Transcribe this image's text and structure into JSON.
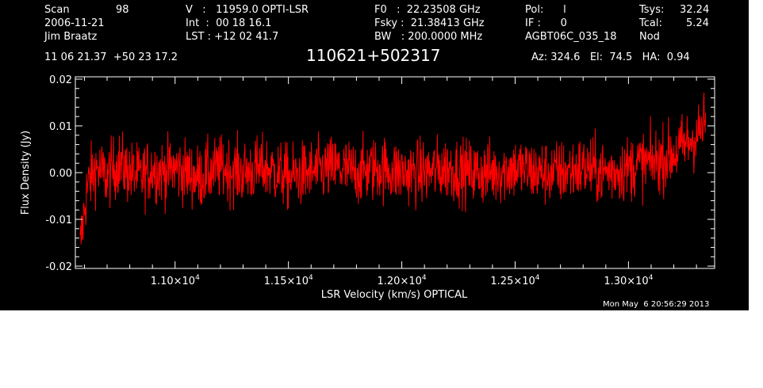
{
  "header": {
    "col1": {
      "scan_label": "Scan",
      "scan_value": "98",
      "date": "2006-11-21",
      "observer": "Jim Braatz"
    },
    "col2": {
      "velocity": "V   :   11959.0 OPTI-LSR",
      "integration": "Int  :  00 18 16.1",
      "lst": "LST : +12 02 41.7"
    },
    "col3": {
      "f0": "F0   :  22.23508 GHz",
      "fsky": "Fsky :  21.38413 GHz",
      "bw": "BW   : 200.0000 MHz"
    },
    "col4": {
      "pol": "Pol:      l",
      "if": "IF :      0",
      "project": "AGBT06C_035_18"
    },
    "col5": {
      "tsys_label": "Tsys:",
      "tsys_value": "32.24",
      "tcal_label": "Tcal:",
      "tcal_value": "5.24",
      "mode": "Nod"
    },
    "coords": "11 06 21.37  +50 23 17.2",
    "source": "110621+502317",
    "az_el_ha": "Az: 324.6   El:  74.5   HA:  0.94",
    "timestamp": "Mon May  6 20:56:29 2013"
  },
  "chart_data": {
    "type": "line",
    "xlabel": "LSR Velocity (km/s) OPTICAL",
    "ylabel": "Flux Density (Jy)",
    "xlim": [
      10560,
      13380
    ],
    "ylim": [
      -0.0205,
      0.0205
    ],
    "x_ticks": [
      11000,
      11500,
      12000,
      12500,
      13000
    ],
    "x_tick_labels": [
      {
        "mantissa": "1.10×10",
        "exp": "4"
      },
      {
        "mantissa": "1.15×10",
        "exp": "4"
      },
      {
        "mantissa": "1.20×10",
        "exp": "4"
      },
      {
        "mantissa": "1.25×10",
        "exp": "4"
      },
      {
        "mantissa": "1.30×10",
        "exp": "4"
      }
    ],
    "y_ticks": [
      -0.02,
      -0.01,
      0.0,
      0.01,
      0.02
    ],
    "y_tick_labels": [
      "-0.02",
      "-0.01",
      "0.00",
      "0.01",
      "0.02"
    ],
    "grid": false,
    "series": [
      {
        "color": "#ff0000",
        "points": [
          [
            10580,
            -0.0165
          ],
          [
            10590,
            -0.012
          ],
          [
            10600,
            -0.008
          ],
          [
            10610,
            -0.004
          ],
          [
            10620,
            -0.002
          ],
          [
            10650,
            0.001
          ],
          [
            10700,
            -0.001
          ],
          [
            10750,
            0.002
          ],
          [
            10800,
            0.0
          ],
          [
            10850,
            -0.001
          ],
          [
            10900,
            0.001
          ],
          [
            10950,
            0.0
          ],
          [
            11000,
            0.001
          ],
          [
            11100,
            -0.001
          ],
          [
            11200,
            0.001
          ],
          [
            11300,
            0.0
          ],
          [
            11400,
            0.001
          ],
          [
            11500,
            -0.001
          ],
          [
            11600,
            0.0
          ],
          [
            11700,
            0.001
          ],
          [
            11800,
            0.0
          ],
          [
            11900,
            0.001
          ],
          [
            12000,
            0.0
          ],
          [
            12100,
            0.0
          ],
          [
            12200,
            0.001
          ],
          [
            12300,
            0.0
          ],
          [
            12400,
            0.0
          ],
          [
            12500,
            0.001
          ],
          [
            12600,
            0.0
          ],
          [
            12700,
            0.0
          ],
          [
            12800,
            0.001
          ],
          [
            12900,
            0.0
          ],
          [
            13000,
            0.001
          ],
          [
            13050,
            0.002
          ],
          [
            13100,
            0.002
          ],
          [
            13150,
            0.003
          ],
          [
            13200,
            0.004
          ],
          [
            13250,
            0.006
          ],
          [
            13280,
            0.007
          ],
          [
            13300,
            0.008
          ],
          [
            13320,
            0.009
          ],
          [
            13340,
            0.011
          ]
        ]
      }
    ],
    "noise_rms": 0.0035
  }
}
